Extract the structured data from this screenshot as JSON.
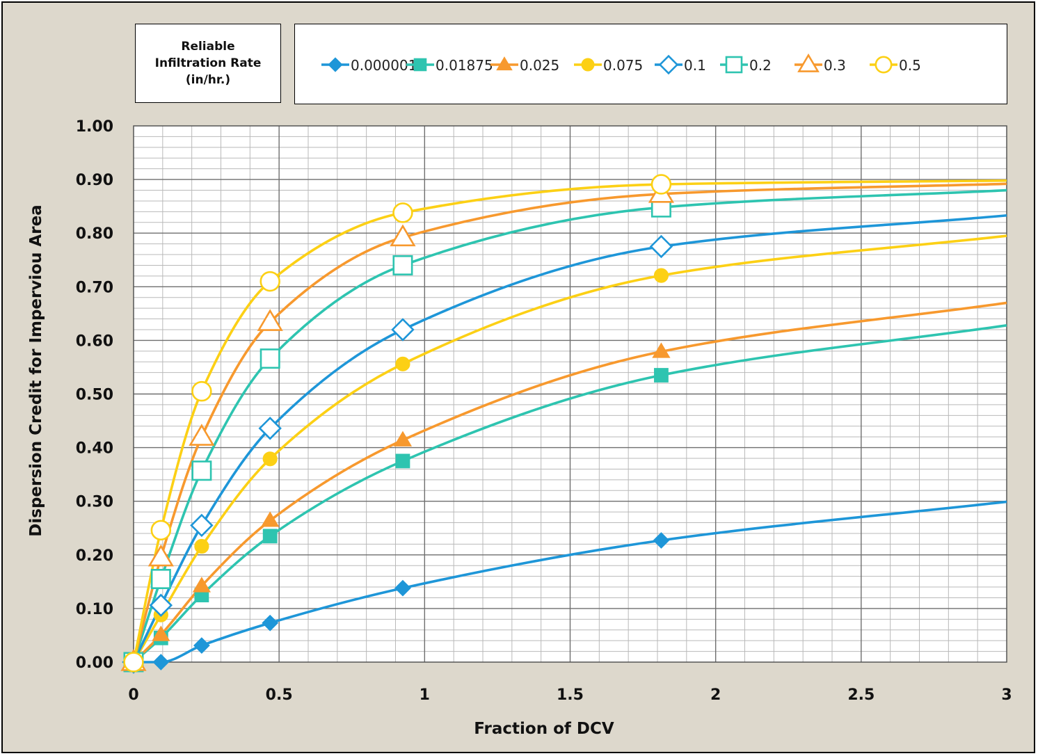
{
  "chart_data": {
    "type": "line",
    "title": "",
    "xlabel": "Fraction of DCV",
    "ylabel": "Dispersion Credit for Imperviou Area",
    "xlim": [
      0,
      3
    ],
    "ylim": [
      0,
      1
    ],
    "x_ticks": [
      "0",
      "0.5",
      "1",
      "1.5",
      "2",
      "2.5",
      "3"
    ],
    "y_ticks": [
      "0.00",
      "0.10",
      "0.20",
      "0.30",
      "0.40",
      "0.50",
      "0.60",
      "0.70",
      "0.80",
      "0.90",
      "1.00"
    ],
    "grid": true,
    "legend_position": "top",
    "legend_title": "Reliable\nInfiltration Rate\n(in/hr.)",
    "x": [
      0,
      0.094,
      0.234,
      0.469,
      0.925,
      1.813
    ],
    "series": [
      {
        "name": "0.000001",
        "color": "#1e96d8",
        "marker": "diamond",
        "filled": true,
        "values": [
          0,
          0.0,
          0.031,
          0.073,
          0.138,
          0.227
        ],
        "end": 0.299
      },
      {
        "name": "0.01875",
        "color": "#2ec4b0",
        "marker": "square",
        "filled": true,
        "values": [
          0,
          0.045,
          0.125,
          0.235,
          0.375,
          0.535
        ],
        "end": 0.628
      },
      {
        "name": "0.025",
        "color": "#f7992e",
        "marker": "triangle",
        "filled": true,
        "values": [
          0,
          0.051,
          0.142,
          0.264,
          0.414,
          0.579
        ],
        "end": 0.67
      },
      {
        "name": "0.075",
        "color": "#fcd015",
        "marker": "circle",
        "filled": true,
        "values": [
          0,
          0.088,
          0.216,
          0.379,
          0.556,
          0.721
        ],
        "end": 0.795
      },
      {
        "name": "0.1",
        "color": "#1e96d8",
        "marker": "diamond",
        "filled": false,
        "values": [
          0,
          0.106,
          0.255,
          0.436,
          0.62,
          0.775
        ],
        "end": 0.833
      },
      {
        "name": "0.2",
        "color": "#2ec4b0",
        "marker": "square",
        "filled": false,
        "values": [
          0,
          0.155,
          0.357,
          0.566,
          0.74,
          0.848
        ],
        "end": 0.88
      },
      {
        "name": "0.3",
        "color": "#f7992e",
        "marker": "triangle",
        "filled": false,
        "values": [
          0,
          0.195,
          0.42,
          0.634,
          0.792,
          0.873
        ],
        "end": 0.892
      },
      {
        "name": "0.5",
        "color": "#fcd015",
        "marker": "circle",
        "filled": false,
        "values": [
          0,
          0.246,
          0.505,
          0.71,
          0.838,
          0.891
        ],
        "end": 0.898
      }
    ]
  }
}
